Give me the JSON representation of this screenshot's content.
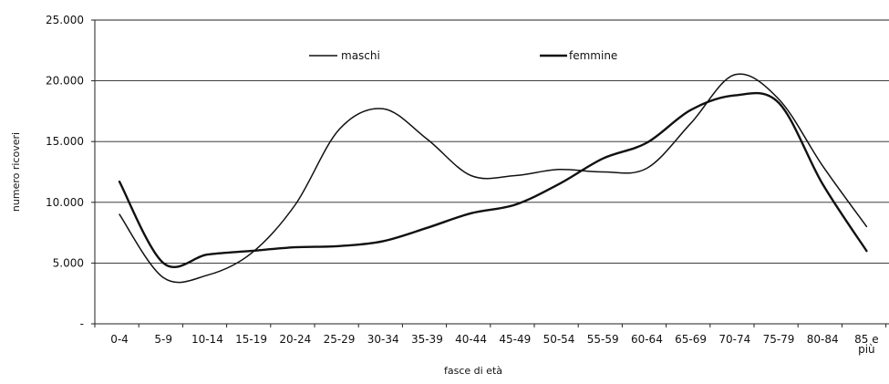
{
  "chart_data": {
    "type": "line",
    "title": "",
    "xlabel": "fasce di età",
    "ylabel": "numero ricoveri",
    "categories": [
      "0-4",
      "5-9",
      "10-14",
      "15-19",
      "20-24",
      "25-29",
      "30-34",
      "35-39",
      "40-44",
      "45-49",
      "50-54",
      "55-59",
      "60-64",
      "65-69",
      "70-74",
      "75-79",
      "80-84",
      "85 e più"
    ],
    "y_tick_labels": [
      "-",
      "5.000",
      "10.000",
      "15.000",
      "20.000",
      "25.000"
    ],
    "y_tick_values": [
      0,
      5000,
      10000,
      15000,
      20000,
      25000
    ],
    "ylim": [
      0,
      25000
    ],
    "grid": true,
    "legend_placement": "top-center",
    "series": [
      {
        "name": "maschi",
        "values": [
          9000,
          3800,
          4000,
          5800,
          9800,
          16000,
          17700,
          15200,
          12200,
          12200,
          12700,
          12500,
          12800,
          16500,
          20500,
          18500,
          13000,
          8000
        ],
        "color": "#111111",
        "stroke": "thin"
      },
      {
        "name": "femmine",
        "values": [
          11700,
          5000,
          5700,
          6000,
          6300,
          6400,
          6800,
          7900,
          9100,
          9800,
          11500,
          13600,
          14900,
          17600,
          18800,
          18200,
          11500,
          6000
        ],
        "color": "#111111",
        "stroke": "thick"
      }
    ]
  }
}
